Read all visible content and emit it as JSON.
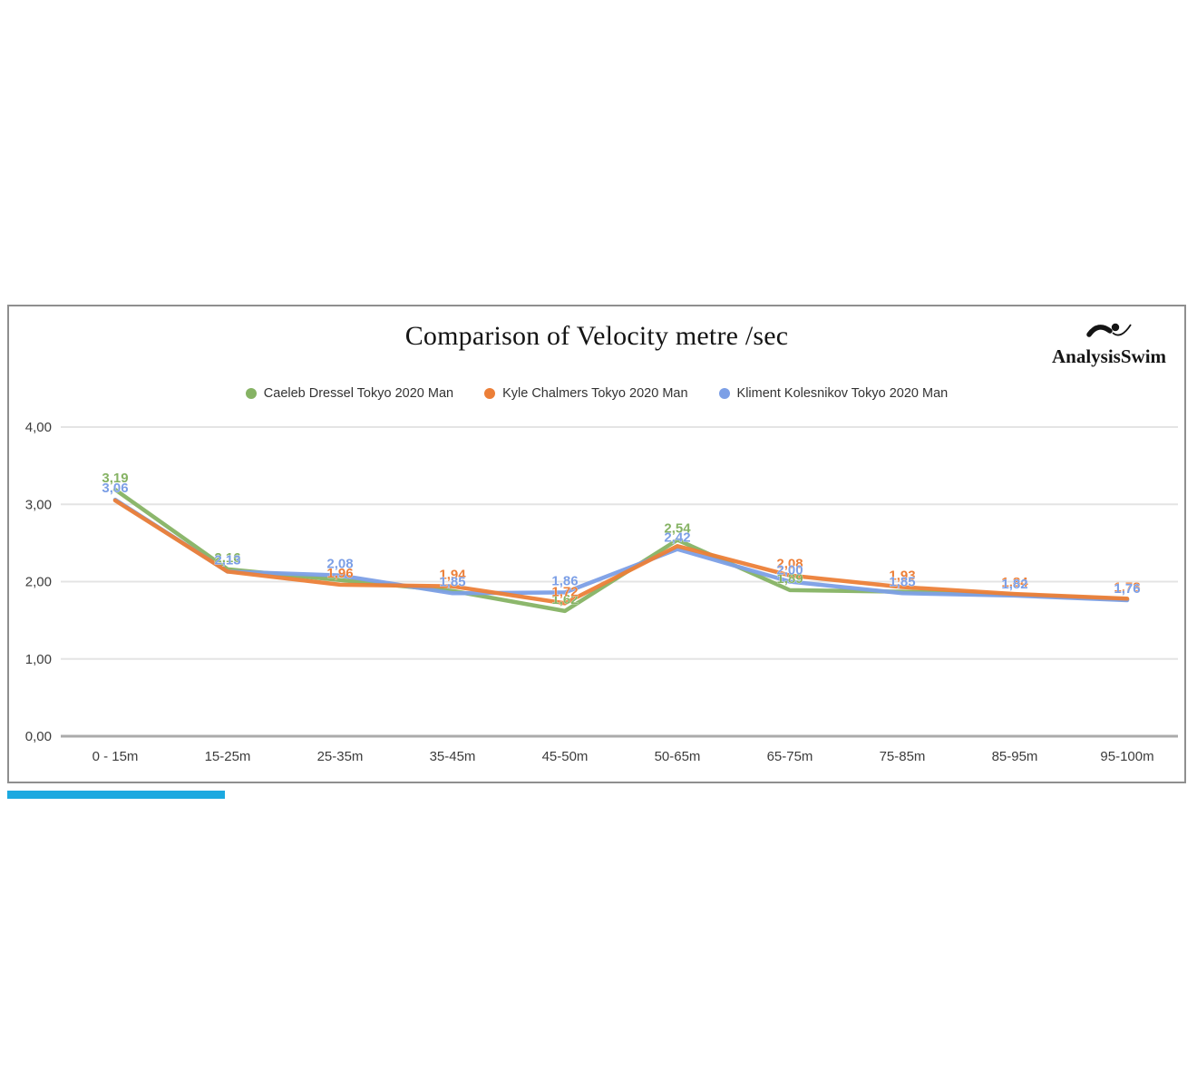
{
  "branding": {
    "logo_text": "AnalysisSwim",
    "logo_icon": "swimmer-icon"
  },
  "decor": {
    "underline_color": "#1CA9E0",
    "card_border": "#8f8f8f"
  },
  "chart_data": {
    "type": "line",
    "title": "Comparison of Velocity metre /sec",
    "xlabel": "",
    "ylabel": "",
    "ylim": [
      0,
      4
    ],
    "grid": true,
    "legend_position": "top",
    "grid_color": "#e4e4e4",
    "baseline_color": "#ababab",
    "categories": [
      "0 - 15m",
      "15-25m",
      "25-35m",
      "35-45m",
      "45-50m",
      "50-65m",
      "65-75m",
      "75-85m",
      "85-95m",
      "95-100m"
    ],
    "y_ticks": [
      {
        "value": 0,
        "label": "0,00"
      },
      {
        "value": 1,
        "label": "1,00"
      },
      {
        "value": 2,
        "label": "2,00"
      },
      {
        "value": 3,
        "label": "3,00"
      },
      {
        "value": 4,
        "label": "4,00"
      }
    ],
    "series": [
      {
        "name": "Caeleb Dressel Tokyo 2020 Man",
        "color": "#86B364",
        "values": [
          3.19,
          2.16,
          2.02,
          1.88,
          1.62,
          2.54,
          1.89,
          1.87,
          1.83,
          1.77
        ]
      },
      {
        "name": "Kyle Chalmers Tokyo 2020 Man",
        "color": "#EC7F38",
        "values": [
          3.05,
          2.13,
          1.96,
          1.94,
          1.72,
          2.46,
          2.08,
          1.93,
          1.84,
          1.78
        ]
      },
      {
        "name": "Kliment Kolesnikov Tokyo 2020 Man",
        "color": "#7C9FE6",
        "values": [
          3.06,
          2.13,
          2.08,
          1.85,
          1.86,
          2.42,
          2.0,
          1.85,
          1.82,
          1.76
        ]
      }
    ],
    "line_draw_order": [
      0,
      2,
      1
    ],
    "point_labels": [
      {
        "series": 0,
        "point": 0,
        "text": "3,19"
      },
      {
        "series": 0,
        "point": 1,
        "text": "2,16"
      },
      {
        "series": 0,
        "point": 4,
        "text": "1,62"
      },
      {
        "series": 0,
        "point": 5,
        "text": "2,54"
      },
      {
        "series": 0,
        "point": 6,
        "text": "1,89"
      },
      {
        "series": 1,
        "point": 2,
        "text": "1,96"
      },
      {
        "series": 1,
        "point": 3,
        "text": "1,94"
      },
      {
        "series": 1,
        "point": 4,
        "text": "1,72"
      },
      {
        "series": 1,
        "point": 6,
        "text": "2,08"
      },
      {
        "series": 1,
        "point": 7,
        "text": "1,93"
      },
      {
        "series": 1,
        "point": 8,
        "text": "1,84"
      },
      {
        "series": 1,
        "point": 9,
        "text": "1,78"
      },
      {
        "series": 2,
        "point": 0,
        "text": "3,06"
      },
      {
        "series": 2,
        "point": 1,
        "text": "2,13"
      },
      {
        "series": 2,
        "point": 2,
        "text": "2,08"
      },
      {
        "series": 2,
        "point": 3,
        "text": "1,85"
      },
      {
        "series": 2,
        "point": 4,
        "text": "1,86"
      },
      {
        "series": 2,
        "point": 5,
        "text": "2,42"
      },
      {
        "series": 2,
        "point": 6,
        "text": "2,00"
      },
      {
        "series": 2,
        "point": 7,
        "text": "1,85"
      },
      {
        "series": 2,
        "point": 8,
        "text": "1,82"
      },
      {
        "series": 2,
        "point": 9,
        "text": "1,76"
      }
    ]
  }
}
